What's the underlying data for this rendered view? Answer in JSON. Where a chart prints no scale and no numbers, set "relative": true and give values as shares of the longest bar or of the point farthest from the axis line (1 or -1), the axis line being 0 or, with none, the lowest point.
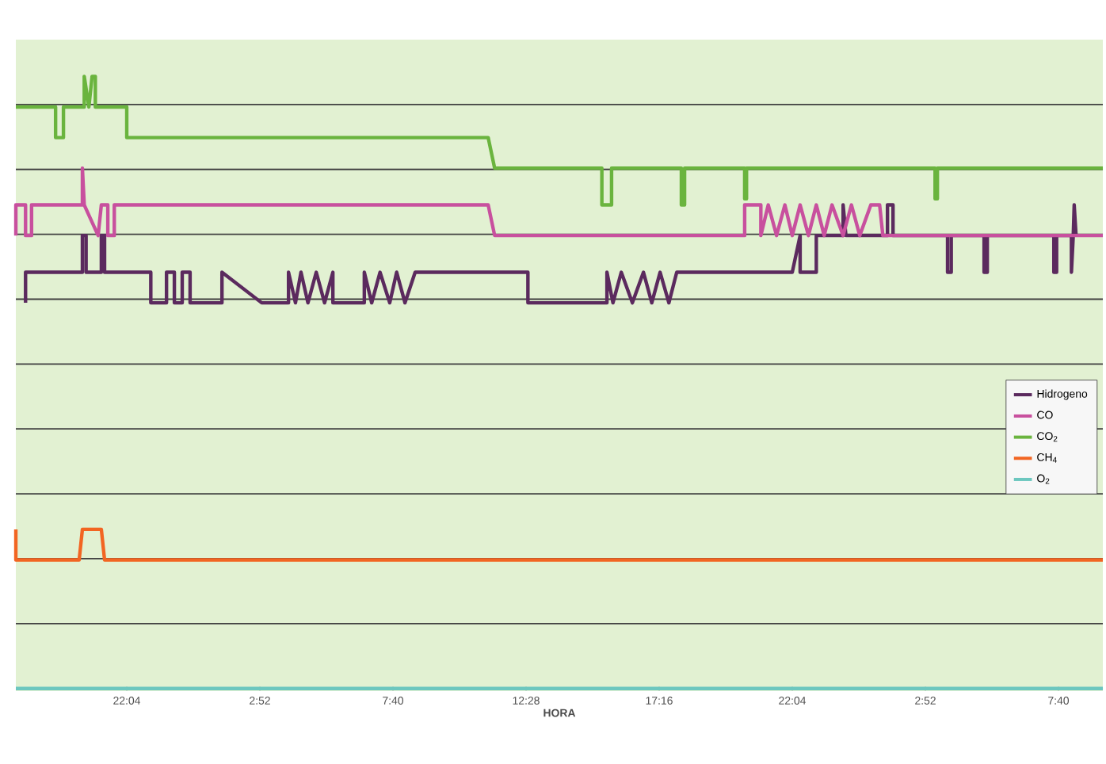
{
  "chart_data": {
    "type": "line",
    "xlabel": "HORA",
    "relative": true,
    "grid": "y",
    "legend": "right",
    "xlim": [
      "--01-01T18:04",
      "--01-03T09:16"
    ],
    "xticks": [
      {
        "value": "--01-01T22:04",
        "label": "22:04"
      },
      {
        "value": "--01-02T02:52",
        "label": "2:52"
      },
      {
        "value": "--01-02T07:40",
        "label": "7:40"
      },
      {
        "value": "--01-02T12:28",
        "label": "12:28"
      },
      {
        "value": "--01-02T17:16",
        "label": "17:16"
      },
      {
        "value": "--01-02T22:04",
        "label": "22:04"
      },
      {
        "value": "--01-03T02:52",
        "label": "2:52"
      },
      {
        "value": "--01-03T07:40",
        "label": "7:40"
      }
    ],
    "series": [
      {
        "name": "Hidrogeno",
        "color": "#5b2a5e",
        "x": [
          "--01-01T18:25",
          "--01-01T18:25",
          "--01-01T20:28",
          "--01-01T20:28",
          "--01-01T20:36",
          "--01-01T20:36",
          "--01-01T21:09",
          "--01-01T21:09",
          "--01-01T21:16",
          "--01-01T21:16",
          "--01-01T22:56",
          "--01-01T22:56",
          "--01-01T23:30",
          "--01-01T23:30",
          "--01-01T23:47",
          "--01-01T23:47",
          "--01-02T00:04",
          "--01-02T00:04",
          "--01-02T00:21",
          "--01-02T00:21",
          "--01-02T01:30",
          "--01-02T01:30",
          "--01-02T02:56",
          "--01-02T03:54",
          "--01-02T03:54",
          "--01-02T04:09",
          "--01-02T04:21",
          "--01-02T04:36",
          "--01-02T04:54",
          "--01-02T05:12",
          "--01-02T05:30",
          "--01-02T05:30",
          "--01-02T06:38",
          "--01-02T06:38",
          "--01-02T06:54",
          "--01-02T07:12",
          "--01-02T07:33",
          "--01-02T07:48",
          "--01-02T08:06",
          "--01-02T08:28",
          "--01-02T12:32",
          "--01-02T12:32",
          "--01-02T15:23",
          "--01-02T15:23",
          "--01-02T15:36",
          "--01-02T15:54",
          "--01-02T16:18",
          "--01-02T16:42",
          "--01-02T17:00",
          "--01-02T17:18",
          "--01-02T17:37",
          "--01-02T17:54",
          "--01-02T22:04",
          "--01-02T22:21",
          "--01-02T22:21",
          "--01-02T22:56",
          "--01-02T22:56",
          "--01-02T23:54",
          "--01-02T23:54",
          "--01-03T00:00",
          "--01-03T01:30",
          "--01-03T01:30",
          "--01-03T01:42",
          "--01-03T01:42",
          "--01-03T03:40",
          "--01-03T03:40",
          "--01-03T03:48",
          "--01-03T03:48",
          "--01-03T04:59",
          "--01-03T04:59",
          "--01-03T05:06",
          "--01-03T05:06",
          "--01-03T07:30",
          "--01-03T07:30",
          "--01-03T07:36",
          "--01-03T07:36",
          "--01-03T08:08",
          "--01-03T08:08",
          "--01-03T08:12",
          "--01-03T08:14",
          "--01-03T08:18"
        ],
        "values": [
          0.63,
          0.68,
          0.68,
          0.74,
          0.74,
          0.68,
          0.68,
          0.74,
          0.74,
          0.68,
          0.68,
          0.63,
          0.63,
          0.68,
          0.68,
          0.63,
          0.63,
          0.68,
          0.68,
          0.63,
          0.63,
          0.68,
          0.63,
          0.63,
          0.68,
          0.63,
          0.68,
          0.63,
          0.68,
          0.63,
          0.68,
          0.63,
          0.63,
          0.68,
          0.63,
          0.68,
          0.63,
          0.68,
          0.63,
          0.68,
          0.68,
          0.63,
          0.63,
          0.68,
          0.63,
          0.68,
          0.63,
          0.68,
          0.63,
          0.68,
          0.63,
          0.68,
          0.68,
          0.74,
          0.68,
          0.68,
          0.74,
          0.74,
          0.79,
          0.74,
          0.74,
          0.79,
          0.79,
          0.74,
          0.74,
          0.68,
          0.68,
          0.74,
          0.74,
          0.68,
          0.68,
          0.74,
          0.74,
          0.68,
          0.68,
          0.74,
          0.74,
          0.68,
          0.74,
          0.79,
          0.74
        ]
      },
      {
        "name": "CO",
        "color": "#c8509e",
        "x": [
          "--01-01T18:04",
          "--01-01T18:04",
          "--01-01T18:25",
          "--01-01T18:25",
          "--01-01T18:38",
          "--01-01T18:38",
          "--01-01T19:13",
          "--01-01T20:28",
          "--01-01T20:28",
          "--01-01T20:32",
          "--01-01T21:02",
          "--01-01T21:09",
          "--01-01T21:23",
          "--01-01T21:23",
          "--01-01T21:37",
          "--01-01T21:37",
          "--01-02T11:06",
          "--01-02T11:20",
          "--01-02T20:21",
          "--01-02T20:21",
          "--01-02T20:56",
          "--01-02T20:56",
          "--01-02T21:12",
          "--01-02T21:30",
          "--01-02T21:48",
          "--01-02T22:04",
          "--01-02T22:21",
          "--01-02T22:39",
          "--01-02T22:56",
          "--01-02T23:13",
          "--01-02T23:30",
          "--01-02T23:54",
          "--01-03T00:12",
          "--01-03T00:30",
          "--01-03T00:54",
          "--01-03T01:13",
          "--01-03T01:20",
          "--01-03T09:16"
        ],
        "values": [
          0.74,
          0.79,
          0.79,
          0.74,
          0.74,
          0.79,
          0.79,
          0.79,
          0.85,
          0.79,
          0.74,
          0.79,
          0.79,
          0.74,
          0.74,
          0.79,
          0.79,
          0.74,
          0.74,
          0.79,
          0.79,
          0.74,
          0.79,
          0.74,
          0.79,
          0.74,
          0.79,
          0.74,
          0.79,
          0.74,
          0.79,
          0.74,
          0.79,
          0.74,
          0.79,
          0.79,
          0.74,
          0.74
        ]
      },
      {
        "name": "CO$_{2}$",
        "color": "#6ab43e",
        "x": [
          "--01-01T18:04",
          "--01-01T19:30",
          "--01-01T19:30",
          "--01-01T19:47",
          "--01-01T19:47",
          "--01-01T20:32",
          "--01-01T20:32",
          "--01-01T20:42",
          "--01-01T20:49",
          "--01-01T20:56",
          "--01-01T20:56",
          "--01-01T22:04",
          "--01-01T22:04",
          "--01-02T11:06",
          "--01-02T11:20",
          "--01-02T15:12",
          "--01-02T15:12",
          "--01-02T15:33",
          "--01-02T15:33",
          "--01-02T18:04",
          "--01-02T18:04",
          "--01-02T18:11",
          "--01-02T18:11",
          "--01-02T20:21",
          "--01-02T20:21",
          "--01-02T20:25",
          "--01-02T20:25",
          "--01-03T03:13",
          "--01-03T03:13",
          "--01-03T03:18",
          "--01-03T03:18",
          "--01-03T09:16"
        ],
        "values": [
          0.95,
          0.95,
          0.9,
          0.9,
          0.95,
          0.95,
          1,
          0.95,
          1,
          1,
          0.95,
          0.95,
          0.9,
          0.9,
          0.85,
          0.85,
          0.79,
          0.79,
          0.85,
          0.85,
          0.79,
          0.79,
          0.85,
          0.85,
          0.8,
          0.8,
          0.85,
          0.85,
          0.8,
          0.8,
          0.85,
          0.85
        ]
      },
      {
        "name": "CH$_{4}$",
        "color": "#f26522",
        "x": [
          "--01-01T18:04",
          "--01-01T18:04",
          "--01-01T20:21",
          "--01-01T20:28",
          "--01-01T21:09",
          "--01-01T21:16",
          "--01-03T09:16"
        ],
        "values": [
          0.26,
          0.21,
          0.21,
          0.26,
          0.26,
          0.21,
          0.21
        ]
      },
      {
        "name": "O$_{2}$",
        "color": "#6cc7bf",
        "x": [
          "--01-01T18:04",
          "--01-03T09:16"
        ],
        "values": [
          0,
          0
        ]
      }
    ]
  }
}
